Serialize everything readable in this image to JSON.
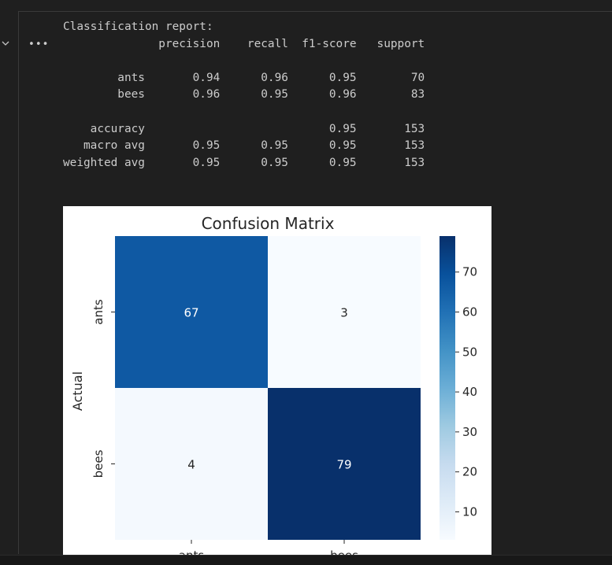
{
  "output": {
    "collapse_icon": "chevron-down-icon",
    "more_actions_label": "•••",
    "report_lines": [
      "Classification report:",
      "              precision    recall  f1-score   support",
      "",
      "        ants       0.94      0.96      0.95        70",
      "        bees       0.96      0.95      0.96        83",
      "",
      "    accuracy                           0.95       153",
      "   macro avg       0.95      0.95      0.95       153",
      "weighted avg       0.95      0.95      0.95       153"
    ]
  },
  "chart_data": {
    "type": "heatmap",
    "title": "Confusion Matrix",
    "ylabel": "Actual",
    "xlabel": "",
    "x_categories": [
      "ants",
      "bees"
    ],
    "y_categories": [
      "ants",
      "bees"
    ],
    "values": [
      [
        67,
        3
      ],
      [
        4,
        79
      ]
    ],
    "colormap": "Blues",
    "colorbar": {
      "min": 3,
      "max": 79,
      "ticks": [
        10,
        20,
        30,
        40,
        50,
        60,
        70
      ]
    },
    "colors": {
      "low": "#f7fbff",
      "high": "#08306b"
    }
  }
}
